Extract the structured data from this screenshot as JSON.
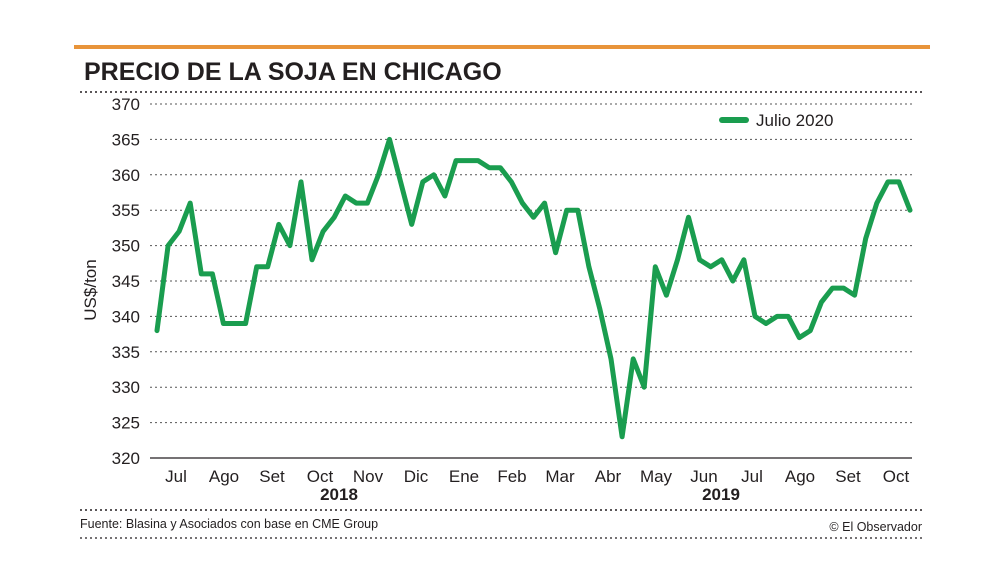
{
  "chart_data": {
    "type": "line",
    "title": "PRECIO DE LA SOJA EN CHICAGO",
    "ylabel": "US$/ton",
    "ylim": [
      320,
      370
    ],
    "yticks": [
      320,
      325,
      330,
      335,
      340,
      345,
      350,
      355,
      360,
      365,
      370
    ],
    "month_labels": [
      "Jul",
      "Ago",
      "Set",
      "Oct",
      "Nov",
      "Dic",
      "Ene",
      "Feb",
      "Mar",
      "Abr",
      "May",
      "Jun",
      "Jul",
      "Ago",
      "Set",
      "Oct"
    ],
    "year_labels": [
      "2018",
      "2019"
    ],
    "series": [
      {
        "name": "Julio 2020",
        "color": "#1a9d4f",
        "values": [
          338,
          350,
          352,
          356,
          346,
          346,
          339,
          339,
          339,
          347,
          347,
          353,
          350,
          359,
          348,
          352,
          354,
          357,
          356,
          356,
          360,
          365,
          359,
          353,
          359,
          360,
          357,
          362,
          362,
          362,
          361,
          361,
          359,
          356,
          354,
          356,
          349,
          355,
          355,
          347,
          341,
          334,
          323,
          334,
          330,
          347,
          343,
          348,
          354,
          348,
          347,
          348,
          345,
          348,
          340,
          339,
          340,
          340,
          337,
          338,
          342,
          344,
          344,
          343,
          351,
          356,
          359,
          359,
          355
        ]
      }
    ],
    "legend_position": "top-right",
    "grid": true,
    "source": "Fuente: Blasina y Asociados con base en CME Group",
    "credit": "© El Observador"
  },
  "colors": {
    "accent_bar": "#e8943a",
    "line": "#1a9d4f",
    "grid": "#555555"
  }
}
